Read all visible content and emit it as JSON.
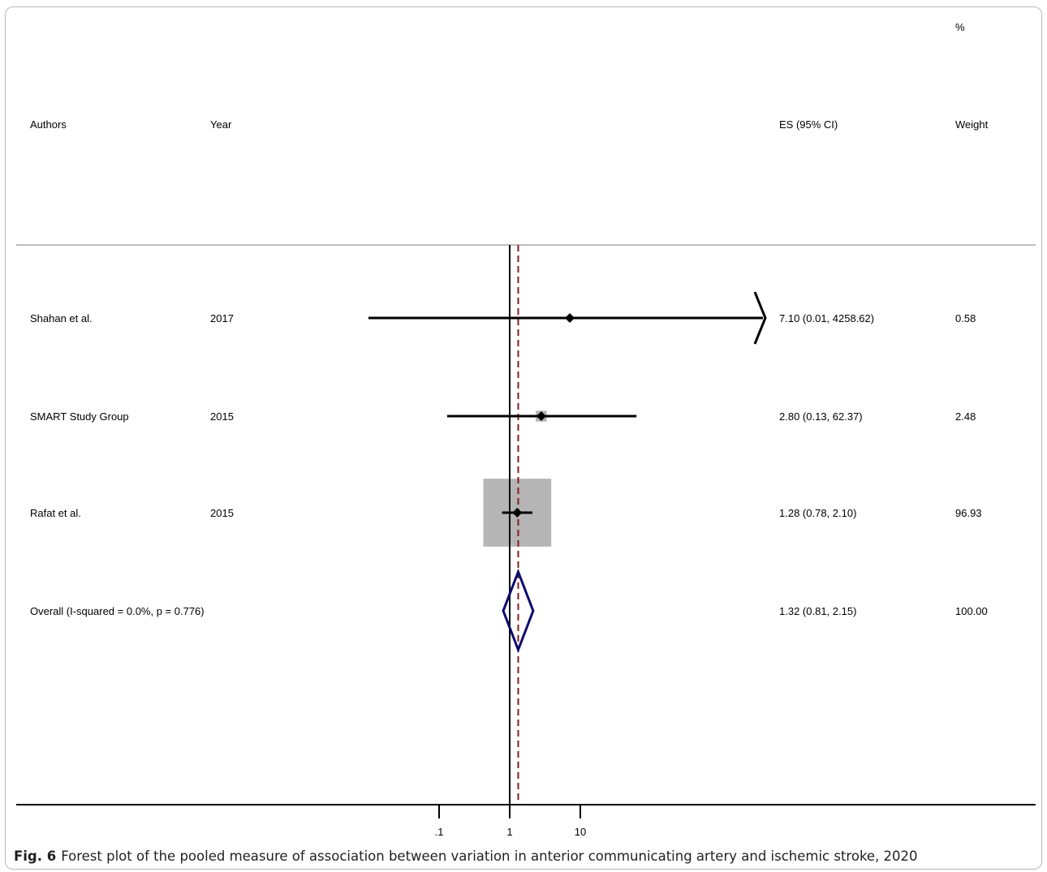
{
  "headers": {
    "authors": "Authors",
    "year": "Year",
    "es": "ES (95% CI)",
    "weight_pct": "%",
    "weight": "Weight"
  },
  "caption": {
    "label": "Fig. 6",
    "text": "Forest plot of the pooled measure of association between variation in anterior communicating artery and ischemic stroke, 2020"
  },
  "colors": {
    "axis": "#000000",
    "null_line": "#000000",
    "overall_line": "#8b1a1a",
    "weight_box": "#b5b5b5",
    "diamond": "#0a0a6e",
    "separator": "#c0c0c0"
  },
  "chart_data": {
    "type": "forest",
    "x_scale": "log",
    "xlim": [
      0.05,
      10000
    ],
    "ticks": [
      {
        "value": 0.1,
        "label": ".1"
      },
      {
        "value": 1,
        "label": "1"
      },
      {
        "value": 10,
        "label": "10"
      }
    ],
    "null_value": 1,
    "studies": [
      {
        "authors": "Shahan et al.",
        "year": "2017",
        "es": 7.1,
        "lo": 0.01,
        "hi": 4258.62,
        "es_text": "7.10 (0.01, 4258.62)",
        "weight": 0.58,
        "weight_text": "0.58"
      },
      {
        "authors": "SMART Study Group",
        "year": "2015",
        "es": 2.8,
        "lo": 0.13,
        "hi": 62.37,
        "es_text": "2.80 (0.13, 62.37)",
        "weight": 2.48,
        "weight_text": "2.48"
      },
      {
        "authors": "Rafat et al.",
        "year": "2015",
        "es": 1.28,
        "lo": 0.78,
        "hi": 2.1,
        "es_text": "1.28 (0.78, 2.10)",
        "weight": 96.93,
        "weight_text": "96.93"
      }
    ],
    "overall": {
      "label": "Overall  (I-squared = 0.0%, p = 0.776)",
      "es": 1.32,
      "lo": 0.81,
      "hi": 2.15,
      "es_text": "1.32 (0.81, 2.15)",
      "weight_text": "100.00"
    }
  }
}
